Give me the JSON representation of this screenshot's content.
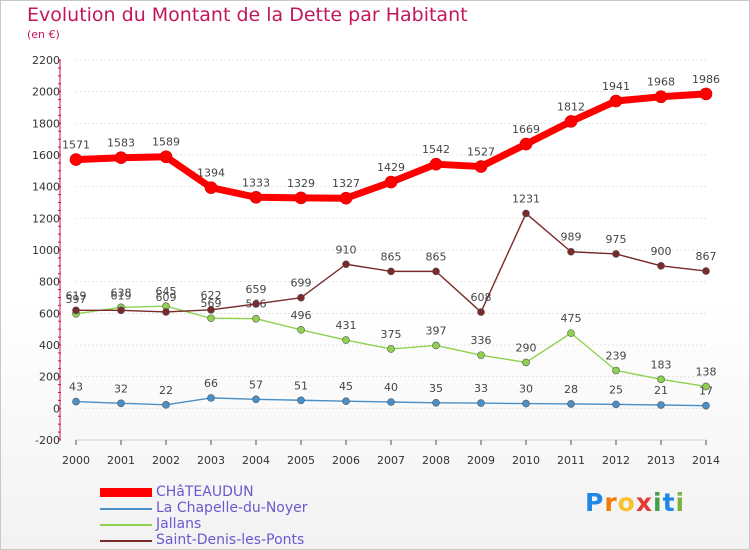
{
  "title": "Evolution du Montant de la Dette par Habitant",
  "subtitle": "(en €)",
  "logo": {
    "letters": [
      "P",
      "r",
      "o",
      "x",
      "i",
      "t",
      "i"
    ],
    "colors": [
      "#1e88e5",
      "#f57c00",
      "#fbc02d",
      "#e53935",
      "#43a047",
      "#1e88e5",
      "#7cb342"
    ]
  },
  "chart_data": {
    "type": "line",
    "x": [
      "2000",
      "2001",
      "2002",
      "2003",
      "2004",
      "2005",
      "2006",
      "2007",
      "2008",
      "2009",
      "2010",
      "2011",
      "2012",
      "2013",
      "2014"
    ],
    "ylim": [
      -200,
      2200
    ],
    "yticks": [
      -200,
      0,
      200,
      400,
      600,
      800,
      1000,
      1200,
      1400,
      1600,
      1800,
      2000,
      2200
    ],
    "grid": "horizontal",
    "legend_position": "bottom-left",
    "series": [
      {
        "name": "CHâTEAUDUN",
        "color": "#ff0000",
        "values": [
          1571,
          1583,
          1589,
          1394,
          1333,
          1329,
          1327,
          1429,
          1542,
          1527,
          1669,
          1812,
          1941,
          1968,
          1986
        ],
        "labels": [
          "1571",
          "1583",
          "1589",
          "1394",
          "1333",
          "1329",
          "1327",
          "1429",
          "1542",
          "1527",
          "1669",
          "1812",
          "1941",
          "1968",
          "1986"
        ]
      },
      {
        "name": "La Chapelle-du-Noyer",
        "color": "#4a90c8",
        "values": [
          43,
          32,
          22,
          66,
          57,
          51,
          45,
          40,
          35,
          33,
          30,
          28,
          25,
          21,
          17
        ],
        "labels": [
          "43",
          "32",
          "22",
          "66",
          "57",
          "51",
          "45",
          "40",
          "35",
          "33",
          "30",
          "28",
          "25",
          "21",
          "17"
        ]
      },
      {
        "name": "Jallans",
        "color": "#8fd14f",
        "values": [
          597,
          638,
          645,
          569,
          566,
          496,
          431,
          375,
          397,
          336,
          290,
          475,
          239,
          183,
          138
        ],
        "labels": [
          "597",
          "638",
          "645",
          "569",
          "566",
          "496",
          "431",
          "375",
          "397",
          "336",
          "290",
          "475",
          "239",
          "183",
          "138"
        ]
      },
      {
        "name": "Saint-Denis-les-Ponts",
        "color": "#7a2a2a",
        "values": [
          619,
          619,
          609,
          622,
          659,
          699,
          910,
          865,
          865,
          608,
          1231,
          989,
          975,
          900,
          867
        ],
        "labels": [
          "619",
          "619",
          "609",
          "622",
          "659",
          "699",
          "910",
          "865",
          "865",
          "608",
          "1231",
          "989",
          "975",
          "900",
          "867"
        ]
      }
    ]
  }
}
